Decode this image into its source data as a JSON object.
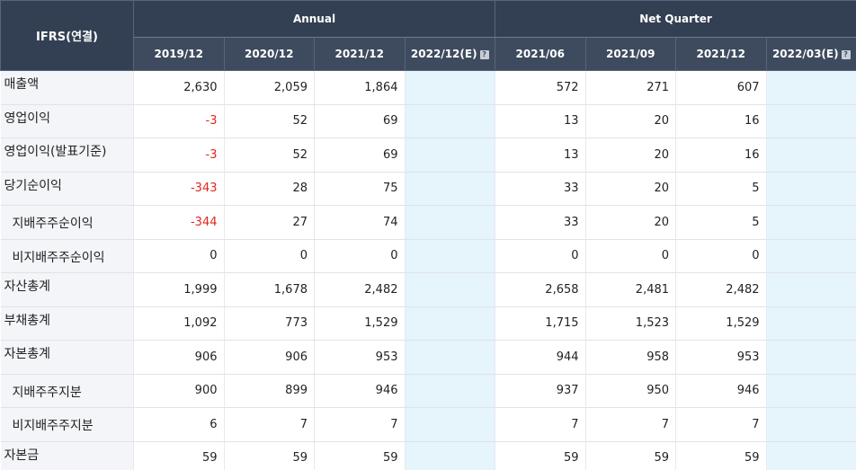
{
  "header": {
    "corner": "IFRS(연결)",
    "annual_label": "Annual",
    "quarter_label": "Net Quarter",
    "estimate_icon": "?",
    "annual_periods": [
      "2019/12",
      "2020/12",
      "2021/12",
      "2022/12(E)"
    ],
    "quarter_periods": [
      "2021/06",
      "2021/09",
      "2021/12",
      "2022/03(E)"
    ]
  },
  "colors": {
    "header_bg": "#3d4a5c",
    "negative": "#e2261d",
    "estimate_bg": "#e6f4fb"
  },
  "rows": [
    {
      "label": "매출액",
      "sub": false,
      "annual": [
        "2,630",
        "2,059",
        "1,864",
        ""
      ],
      "quarter": [
        "572",
        "271",
        "607",
        ""
      ]
    },
    {
      "label": "영업이익",
      "sub": false,
      "annual": [
        "-3",
        "52",
        "69",
        ""
      ],
      "quarter": [
        "13",
        "20",
        "16",
        ""
      ]
    },
    {
      "label": "영업이익(발표기준)",
      "sub": false,
      "annual": [
        "-3",
        "52",
        "69",
        ""
      ],
      "quarter": [
        "13",
        "20",
        "16",
        ""
      ]
    },
    {
      "label": "당기순이익",
      "sub": false,
      "annual": [
        "-343",
        "28",
        "75",
        ""
      ],
      "quarter": [
        "33",
        "20",
        "5",
        ""
      ]
    },
    {
      "label": "지배주주순이익",
      "sub": true,
      "annual": [
        "-344",
        "27",
        "74",
        ""
      ],
      "quarter": [
        "33",
        "20",
        "5",
        ""
      ]
    },
    {
      "label": "비지배주주순이익",
      "sub": true,
      "annual": [
        "0",
        "0",
        "0",
        ""
      ],
      "quarter": [
        "0",
        "0",
        "0",
        ""
      ]
    },
    {
      "label": "자산총계",
      "sub": false,
      "annual": [
        "1,999",
        "1,678",
        "2,482",
        ""
      ],
      "quarter": [
        "2,658",
        "2,481",
        "2,482",
        ""
      ]
    },
    {
      "label": "부채총계",
      "sub": false,
      "annual": [
        "1,092",
        "773",
        "1,529",
        ""
      ],
      "quarter": [
        "1,715",
        "1,523",
        "1,529",
        ""
      ]
    },
    {
      "label": "자본총계",
      "sub": false,
      "annual": [
        "906",
        "906",
        "953",
        ""
      ],
      "quarter": [
        "944",
        "958",
        "953",
        ""
      ]
    },
    {
      "label": "지배주주지분",
      "sub": true,
      "annual": [
        "900",
        "899",
        "946",
        ""
      ],
      "quarter": [
        "937",
        "950",
        "946",
        ""
      ]
    },
    {
      "label": "비지배주주지분",
      "sub": true,
      "annual": [
        "6",
        "7",
        "7",
        ""
      ],
      "quarter": [
        "7",
        "7",
        "7",
        ""
      ]
    },
    {
      "label": "자본금",
      "sub": false,
      "annual": [
        "59",
        "59",
        "59",
        ""
      ],
      "quarter": [
        "59",
        "59",
        "59",
        ""
      ]
    }
  ]
}
